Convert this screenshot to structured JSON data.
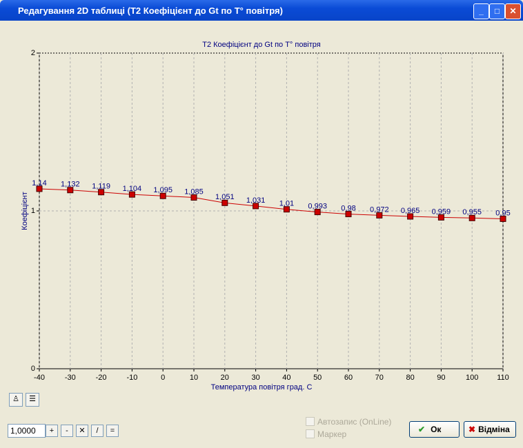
{
  "window": {
    "title": "Редагування 2D таблиці (T2 Коефіцієнт до Gt по T°  повітря)"
  },
  "chart_data": {
    "type": "line",
    "title": "T2 Коефіцієнт до Gt по T° повітря",
    "x_label": "Температура повітря град. С",
    "y_label": "Коефіцієнт",
    "x": [
      -40,
      -30,
      -20,
      -10,
      0,
      10,
      20,
      30,
      40,
      50,
      60,
      70,
      80,
      90,
      100,
      110
    ],
    "values": [
      1.14,
      1.132,
      1.119,
      1.104,
      1.095,
      1.085,
      1.051,
      1.031,
      1.01,
      0.993,
      0.98,
      0.972,
      0.965,
      0.959,
      0.955,
      0.95
    ],
    "value_labels": [
      "1,14",
      "1,132",
      "1,119",
      "1,104",
      "1,095",
      "1,085",
      "1,051",
      "1,031",
      "1,01",
      "0,993",
      "0,98",
      "0,972",
      "0,965",
      "0,959",
      "0,955",
      "0,95"
    ],
    "color": "#cc0000",
    "xlim": [
      -40,
      110
    ],
    "xticks": [
      -40,
      -30,
      -20,
      -10,
      0,
      10,
      20,
      30,
      40,
      50,
      60,
      70,
      80,
      90,
      100,
      110
    ],
    "ylim": [
      0,
      2
    ],
    "yticks": [
      0,
      1,
      2
    ],
    "grid": true
  },
  "controls": {
    "input": "1,0000",
    "buttons": [
      "+",
      "-",
      "✕",
      "/",
      "="
    ],
    "checkboxes": [
      "Автозапис (OnLine)",
      "Маркер"
    ],
    "ok": "Ок",
    "cancel": "Відміна"
  }
}
